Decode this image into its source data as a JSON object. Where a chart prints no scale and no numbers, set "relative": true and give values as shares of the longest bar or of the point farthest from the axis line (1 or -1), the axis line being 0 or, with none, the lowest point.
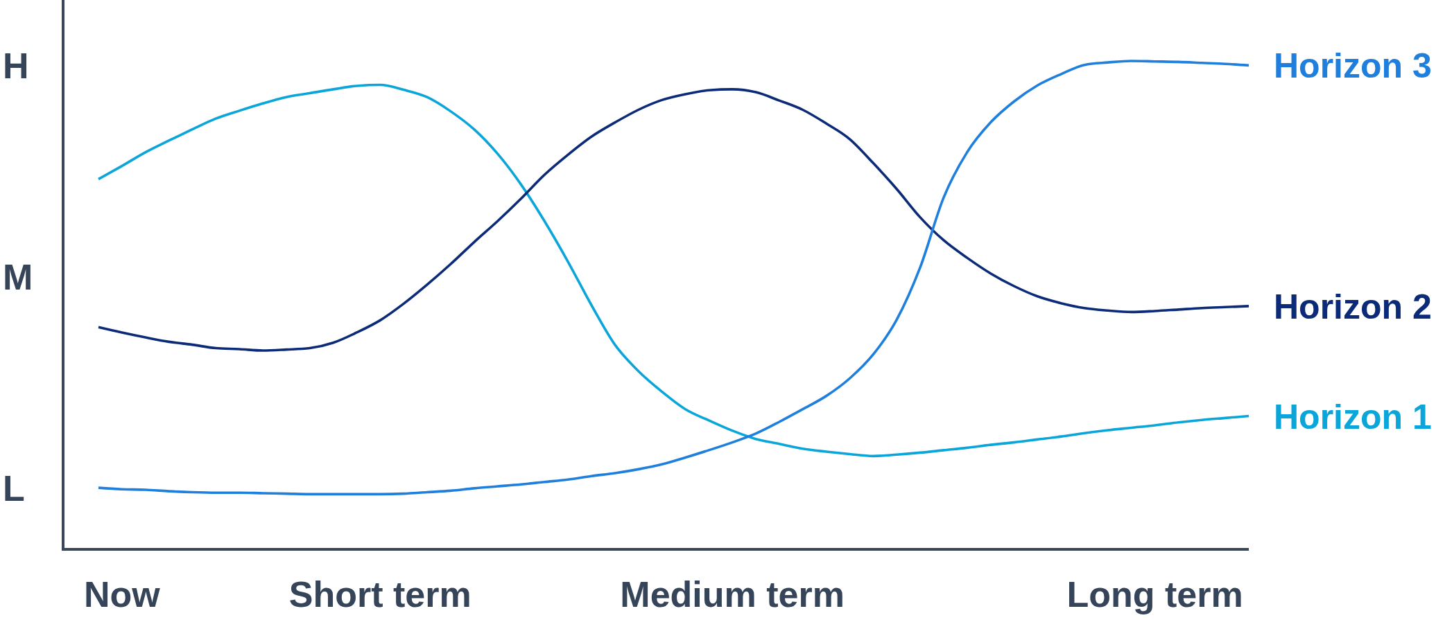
{
  "chart_data": {
    "type": "line",
    "relative": true,
    "categories": [
      null,
      "Now",
      null,
      null,
      null,
      null,
      null,
      null,
      null,
      null,
      null,
      null,
      "Short term",
      null,
      null,
      null,
      null,
      null,
      null,
      null,
      null,
      null,
      null,
      null,
      null,
      null,
      null,
      "Medium term",
      null,
      null,
      null,
      null,
      null,
      null,
      null,
      null,
      null,
      null,
      null,
      null,
      null,
      null,
      null,
      null,
      null,
      "Long term",
      null,
      null,
      null,
      null
    ],
    "annotations": [
      "H",
      "M",
      "L"
    ],
    "series": [
      {
        "name": "Horizon 1",
        "color": "#0aa5d9",
        "values": [
          0.758,
          0.785,
          0.813,
          0.837,
          0.86,
          0.882,
          0.898,
          0.913,
          0.926,
          0.934,
          0.942,
          0.949,
          0.951,
          0.941,
          0.926,
          0.897,
          0.86,
          0.81,
          0.747,
          0.672,
          0.589,
          0.5,
          0.419,
          0.365,
          0.323,
          0.287,
          0.264,
          0.243,
          0.226,
          0.216,
          0.206,
          0.2,
          0.195,
          0.191,
          0.194,
          0.198,
          0.203,
          0.208,
          0.214,
          0.219,
          0.225,
          0.231,
          0.238,
          0.244,
          0.249,
          0.254,
          0.26,
          0.265,
          0.269,
          0.273
        ]
      },
      {
        "name": "Horizon 2",
        "color": "#0b2a78",
        "values": [
          0.455,
          0.444,
          0.434,
          0.425,
          0.419,
          0.412,
          0.41,
          0.407,
          0.409,
          0.412,
          0.423,
          0.444,
          0.469,
          0.503,
          0.542,
          0.584,
          0.629,
          0.672,
          0.718,
          0.767,
          0.808,
          0.845,
          0.874,
          0.9,
          0.92,
          0.932,
          0.94,
          0.942,
          0.936,
          0.919,
          0.9,
          0.872,
          0.84,
          0.791,
          0.738,
          0.68,
          0.633,
          0.597,
          0.565,
          0.539,
          0.518,
          0.504,
          0.494,
          0.489,
          0.486,
          0.488,
          0.491,
          0.494,
          0.496,
          0.498
        ]
      },
      {
        "name": "Horizon 3",
        "color": "#1f7fdc",
        "values": [
          0.126,
          0.123,
          0.122,
          0.119,
          0.117,
          0.116,
          0.116,
          0.115,
          0.114,
          0.113,
          0.113,
          0.113,
          0.113,
          0.114,
          0.117,
          0.12,
          0.125,
          0.129,
          0.133,
          0.138,
          0.143,
          0.15,
          0.156,
          0.164,
          0.174,
          0.188,
          0.203,
          0.219,
          0.237,
          0.261,
          0.287,
          0.314,
          0.35,
          0.399,
          0.47,
          0.577,
          0.72,
          0.813,
          0.874,
          0.917,
          0.95,
          0.973,
          0.992,
          0.997,
          1,
          0.999,
          0.998,
          0.996,
          0.994,
          0.991
        ]
      }
    ]
  }
}
